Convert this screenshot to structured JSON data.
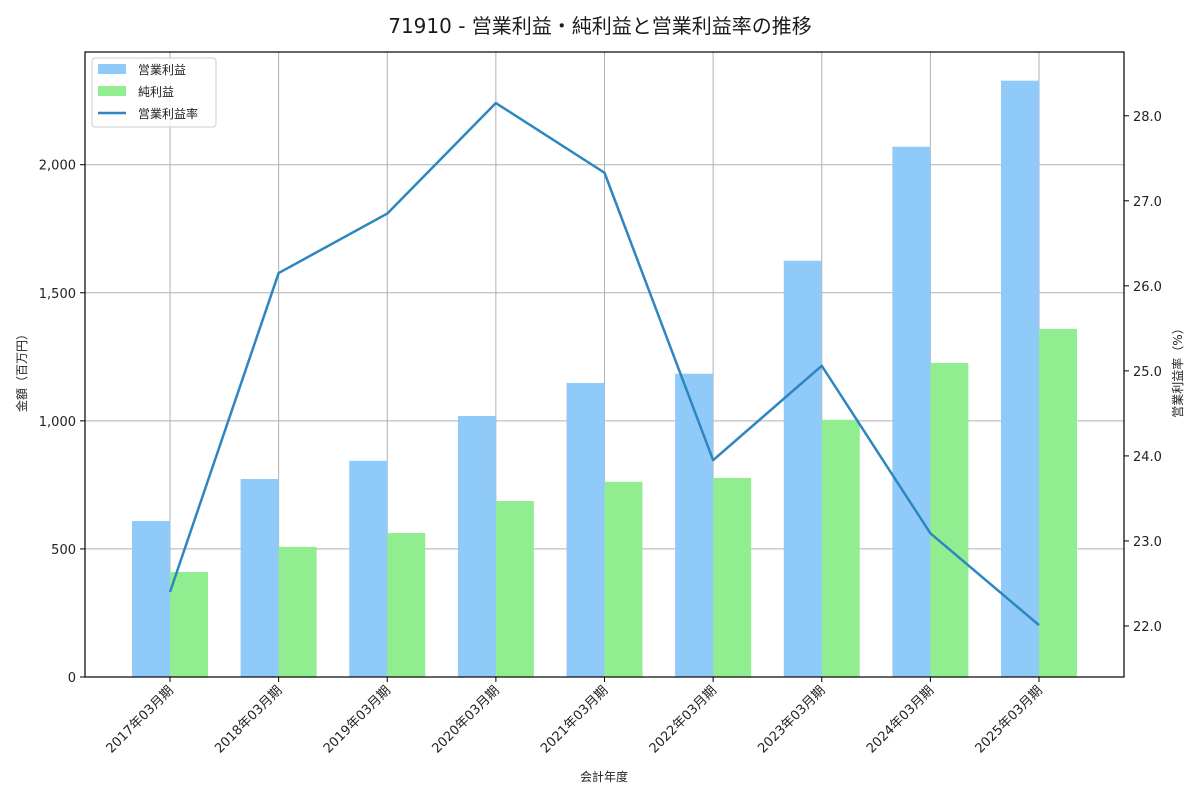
{
  "chart_data": {
    "type": "bar+line",
    "title": "71910 - 営業利益・純利益と営業利益率の推移",
    "xlabel": "会計年度",
    "ylabel_left": "金額（百万円）",
    "ylabel_right": "営業利益率（%）",
    "categories": [
      "2017年03月期",
      "2018年03月期",
      "2019年03月期",
      "2020年03月期",
      "2021年03月期",
      "2022年03月期",
      "2023年03月期",
      "2024年03月期",
      "2025年03月期"
    ],
    "series": [
      {
        "name": "営業利益",
        "type": "bar",
        "axis": "left",
        "color": "#90caf9",
        "values": [
          609,
          773,
          844,
          1019,
          1148,
          1184,
          1625,
          2070,
          2328
        ]
      },
      {
        "name": "純利益",
        "type": "bar",
        "axis": "left",
        "color": "#90ee90",
        "values": [
          410,
          508,
          562,
          687,
          762,
          777,
          1004,
          1226,
          1359
        ]
      },
      {
        "name": "営業利益率",
        "type": "line",
        "axis": "right",
        "color": "#2e86c1",
        "values": [
          22.4,
          26.15,
          26.85,
          28.15,
          27.33,
          23.95,
          25.06,
          23.09,
          22.01
        ]
      }
    ],
    "ylim_left": [
      0,
      2440
    ],
    "yticks_left": [
      0,
      500,
      1000,
      1500,
      2000
    ],
    "yticks_left_labels": [
      "0",
      "500",
      "1,000",
      "1,500",
      "2,000"
    ],
    "ylim_right": [
      21.4,
      28.75
    ],
    "yticks_right": [
      22.0,
      23.0,
      24.0,
      25.0,
      26.0,
      27.0,
      28.0
    ],
    "yticks_right_labels": [
      "22.0",
      "23.0",
      "24.0",
      "25.0",
      "26.0",
      "27.0",
      "28.0"
    ],
    "grid": true,
    "legend_position": "upper left"
  },
  "legend": {
    "items": [
      {
        "label": "営業利益",
        "kind": "patch",
        "color": "#90caf9"
      },
      {
        "label": "純利益",
        "kind": "patch",
        "color": "#90ee90"
      },
      {
        "label": "営業利益率",
        "kind": "line",
        "color": "#2e86c1"
      }
    ]
  }
}
